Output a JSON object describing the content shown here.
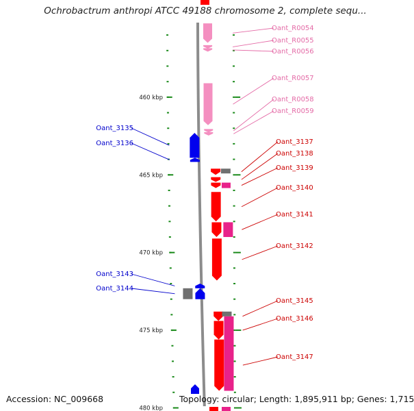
{
  "title": "Ochrobactrum anthropi ATCC 49188 chromosome 2, complete sequ...",
  "footer": {
    "accession": "Accession: NC_009668",
    "summary": "Topology: circular; Length: 1,895,911 bp; Genes: 1,715"
  },
  "colors": {
    "backbone": "#8c8c8c",
    "rna": "#f48fc0",
    "rna_label": "#e46aa6",
    "forward_gene": "#ff0000",
    "forward_label": "#cc0000",
    "forward_alt": "#e8228a",
    "reverse_gene": "#0000ee",
    "reverse_label": "#0000cc",
    "pseudogene": "#707070",
    "tick": "#1a8a1a"
  },
  "scale": {
    "unit": "kbp",
    "start": 455.2,
    "end": 480.2
  },
  "ticks": [
    {
      "kbp": 460,
      "label": "460 kbp"
    },
    {
      "kbp": 465,
      "label": "465 kbp"
    },
    {
      "kbp": 470,
      "label": "470 kbp"
    },
    {
      "kbp": 475,
      "label": "475 kbp"
    },
    {
      "kbp": 480,
      "label": "480 kbp"
    }
  ],
  "rna_features": [
    {
      "name": "Oant_R0054",
      "start": 455.25,
      "end": 456.5
    },
    {
      "name": "Oant_R0055",
      "start": 456.65,
      "end": 456.8
    },
    {
      "name": "Oant_R0056",
      "start": 456.85,
      "end": 456.95
    },
    {
      "name": "Oant_R0057",
      "start": 459.1,
      "end": 461.8
    },
    {
      "name": "Oant_R0058",
      "start": 462.05,
      "end": 462.2
    },
    {
      "name": "Oant_R0059",
      "start": 462.25,
      "end": 462.35
    }
  ],
  "forward_genes": [
    {
      "name": "Oant_3137",
      "start": 464.6,
      "end": 465.0,
      "kind": "cds"
    },
    {
      "name": "Oant_3138",
      "start": 465.15,
      "end": 465.45,
      "kind": "cds"
    },
    {
      "name": "Oant_3139",
      "start": 465.5,
      "end": 465.85,
      "kind": "cds"
    },
    {
      "name": "Oant_3140",
      "start": 466.1,
      "end": 468.0,
      "kind": "cds"
    },
    {
      "name": "Oant_3141",
      "start": 468.05,
      "end": 469.0,
      "kind": "cds"
    },
    {
      "name": "Oant_3142",
      "start": 469.1,
      "end": 471.8,
      "kind": "cds"
    },
    {
      "name": "Oant_3145",
      "start": 473.8,
      "end": 474.4,
      "kind": "cds"
    },
    {
      "name": "Oant_3146",
      "start": 474.4,
      "end": 475.6,
      "kind": "cds"
    },
    {
      "name": "Oant_3147",
      "start": 475.6,
      "end": 478.9,
      "kind": "cds"
    }
  ],
  "reverse_genes": [
    {
      "name": "Oant_3135",
      "start": 462.3,
      "end": 463.9
    },
    {
      "name": "Oant_3136",
      "start": 463.9,
      "end": 464.1
    },
    {
      "name": "Oant_3143",
      "start": 472.0,
      "end": 472.3
    },
    {
      "name": "Oant_3144",
      "start": 472.3,
      "end": 473.0
    }
  ]
}
